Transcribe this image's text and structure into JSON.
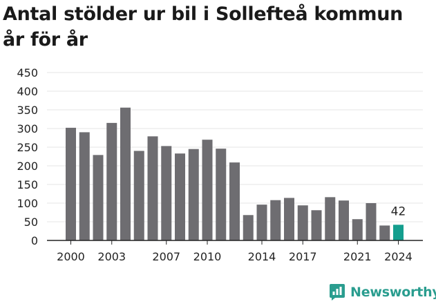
{
  "title_lines": [
    "Antal stölder ur bil i Sollefteå kommun",
    "år för år"
  ],
  "brand": "Newsworthy",
  "colors": {
    "bar": "#6e6d71",
    "highlight": "#149e8e",
    "grid": "#e6e6e6",
    "axis": "#222222",
    "brand": "#2a9d8f"
  },
  "chart_data": {
    "type": "bar",
    "title": "Antal stölder ur bil i Sollefteå kommun år för år",
    "xlabel": "",
    "ylabel": "",
    "categories": [
      "2000",
      "2001",
      "2002",
      "2003",
      "2004",
      "2005",
      "2006",
      "2007",
      "2008",
      "2009",
      "2010",
      "2011",
      "2012",
      "2013",
      "2014",
      "2015",
      "2016",
      "2017",
      "2018",
      "2019",
      "2020",
      "2021",
      "2022",
      "2023",
      "2024"
    ],
    "values": [
      302,
      290,
      229,
      315,
      356,
      240,
      279,
      253,
      233,
      245,
      270,
      246,
      209,
      68,
      96,
      108,
      114,
      94,
      81,
      116,
      107,
      57,
      100,
      40,
      42
    ],
    "ylim": [
      0,
      450
    ],
    "yticks": [
      0,
      50,
      100,
      150,
      200,
      250,
      300,
      350,
      400,
      450
    ],
    "xtick_labels": [
      "2000",
      "2003",
      "2007",
      "2010",
      "2014",
      "2017",
      "2021",
      "2024"
    ],
    "highlight": {
      "category": "2024",
      "label": "42"
    },
    "grid": true
  }
}
